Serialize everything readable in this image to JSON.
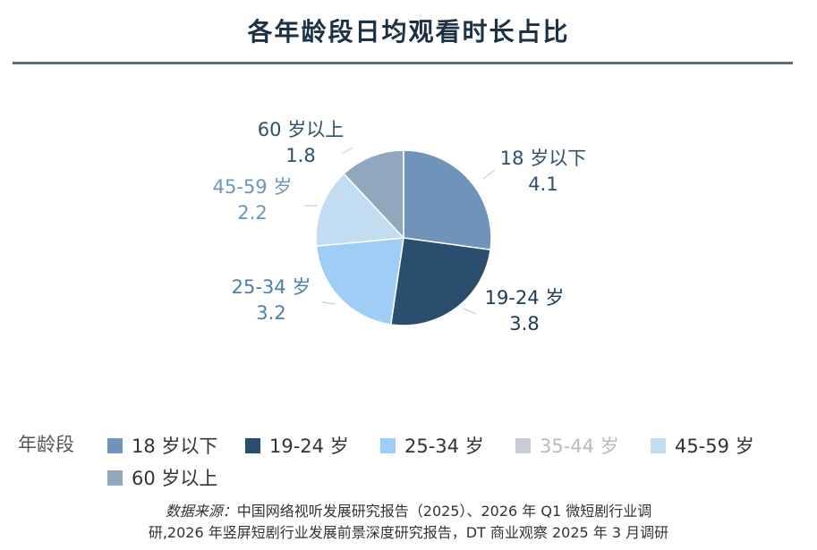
{
  "title": "各年龄段日均观看时长占比",
  "chart_data": {
    "type": "pie",
    "slices": [
      {
        "name": "18 岁以下",
        "value": 4.1,
        "color": "#7093b9",
        "label_color": "#2f4f6e"
      },
      {
        "name": "19-24 岁",
        "value": 3.8,
        "color": "#2b4e6e",
        "label_color": "#1e3a55"
      },
      {
        "name": "25-34 岁",
        "value": 3.2,
        "color": "#9ecdf5",
        "label_color": "#4d7fa8"
      },
      {
        "name": "45-59 岁",
        "value": 2.2,
        "color": "#c2dcf2",
        "label_color": "#6b96bd"
      },
      {
        "name": "60 岁以上",
        "value": 1.8,
        "color": "#8fa8bf",
        "label_color": "#2f4f6e"
      }
    ],
    "legend_title": "年龄段",
    "legend": [
      {
        "name": "18 岁以下",
        "color": "#7093b9",
        "muted": false
      },
      {
        "name": "19-24 岁",
        "color": "#2b4e6e",
        "muted": false
      },
      {
        "name": "25-34 岁",
        "color": "#9ecdf5",
        "muted": false
      },
      {
        "name": "35-44 岁",
        "color": "#c8ccd3",
        "muted": true
      },
      {
        "name": "45-59 岁",
        "color": "#c2dcf2",
        "muted": false
      },
      {
        "name": "60 岁以上",
        "color": "#8fa8bf",
        "muted": false
      }
    ]
  },
  "source": {
    "label": "数据来源：",
    "line1": "中国网络视听发展研究报告（2025）、2026 年 Q1 微短剧行业调",
    "line2": "研,2026 年竖屏短剧行业发展前景深度研究报告，DT 商业观察 2025 年 3 月调研"
  }
}
